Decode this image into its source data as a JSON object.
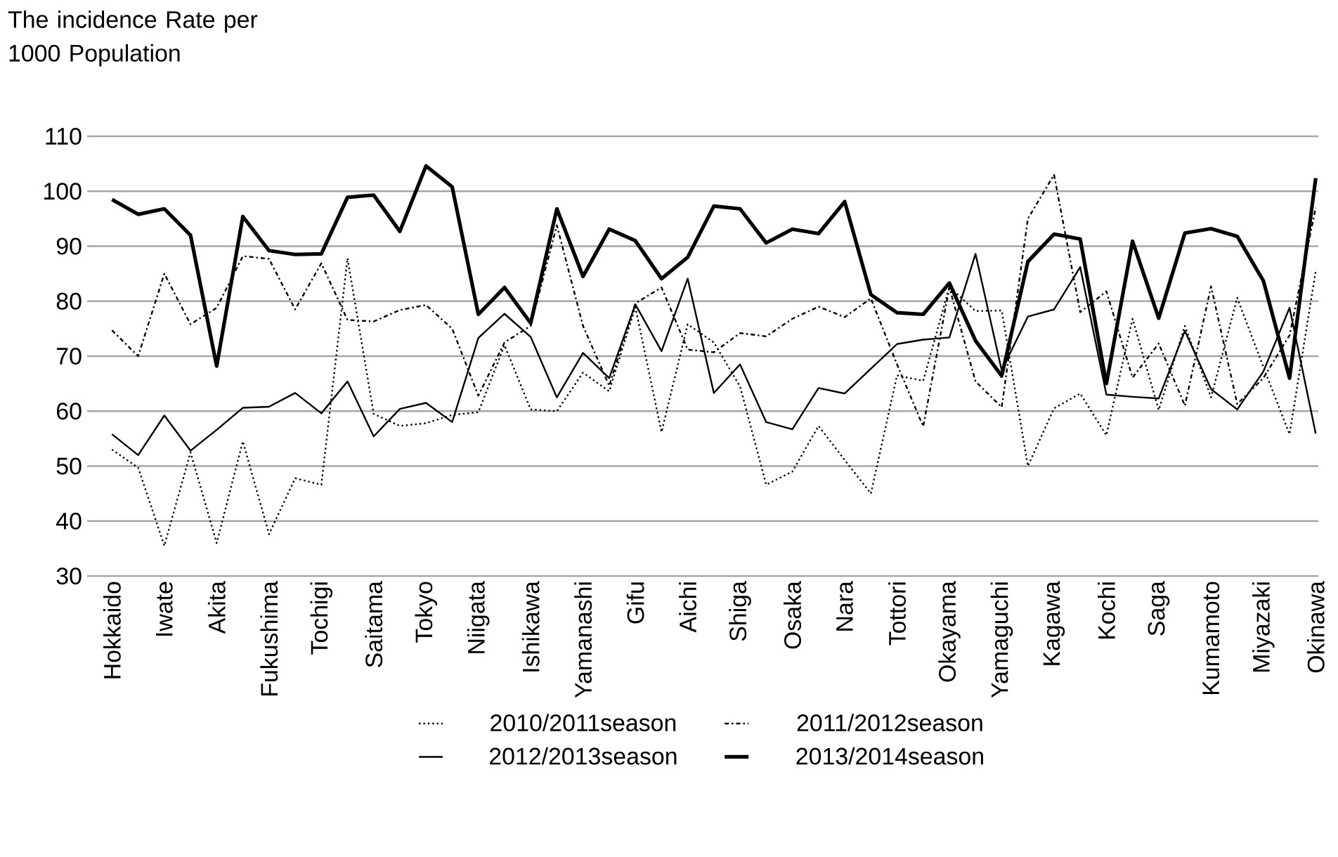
{
  "chart_data": {
    "type": "line",
    "ylabel": "The incidence Rate per 1000 Population",
    "categories": [
      "Hokkaido",
      null,
      "Iwate",
      null,
      "Akita",
      null,
      "Fukushima",
      null,
      "Tochigi",
      null,
      "Saitama",
      null,
      "Tokyo",
      null,
      "Niigata",
      null,
      "Ishikawa",
      null,
      "Yamanashi",
      null,
      "Gifu",
      null,
      "Aichi",
      null,
      "Shiga",
      null,
      "Osaka",
      null,
      "Nara",
      null,
      "Tottori",
      null,
      "Okayama",
      null,
      "Yamaguchi",
      null,
      "Kagawa",
      null,
      "Kochi",
      null,
      "Saga",
      null,
      "Kumamoto",
      null,
      "Miyazaki",
      null,
      "Okinawa"
    ],
    "series": [
      {
        "name": "2010/2011season",
        "color": "#000000",
        "line_style": "dotted",
        "values": [
          53,
          49.7,
          35.5,
          52.5,
          36,
          54.5,
          37.6,
          47.8,
          46.6,
          87.8,
          59.5,
          57.3,
          57.8,
          59.3,
          59.8,
          72,
          60.3,
          60,
          67,
          63.6,
          78.9,
          56.2,
          75.8,
          72.5,
          64.5,
          46.6,
          49,
          57.3,
          51.1,
          45,
          66.5,
          65.5,
          82.6,
          78.2,
          78.3,
          50,
          60.5,
          63.2,
          55.6,
          76.8,
          60.2,
          75.5,
          62.5,
          80.6,
          68,
          55.8,
          85.5
        ]
      },
      {
        "name": "2011/2012season",
        "color": "#000000",
        "line_style": "dashdot",
        "values": [
          74.7,
          70,
          85,
          75.8,
          78.8,
          88.2,
          87.7,
          78.5,
          86.9,
          76.6,
          76.3,
          78.4,
          79.3,
          75,
          62.8,
          72.5,
          75.5,
          93.8,
          75.5,
          64.6,
          79.6,
          82.5,
          71.2,
          70.7,
          74.2,
          73.6,
          76.8,
          79,
          77.1,
          80.5,
          68.5,
          57.2,
          82.5,
          65.4,
          60.7,
          95,
          103,
          78,
          81.8,
          66.1,
          72.3,
          61,
          82.7,
          61.3,
          66,
          73.8,
          97
        ]
      },
      {
        "name": "2012/2013season",
        "color": "#000000",
        "line_style": "solid",
        "values": [
          55.8,
          52,
          59.2,
          52.8,
          56.6,
          60.6,
          60.8,
          63.3,
          59.6,
          65.4,
          55.4,
          60.4,
          61.5,
          58,
          73.3,
          77.7,
          73.5,
          62.5,
          70.6,
          66,
          79.4,
          70.9,
          84.1,
          63.3,
          68.5,
          58,
          56.7,
          64.2,
          63.2,
          67.7,
          72.2,
          73,
          73.4,
          88.6,
          67.4,
          77.2,
          78.5,
          86.2,
          63,
          62.6,
          62.3,
          74.6,
          64,
          60.3,
          67.2,
          78.8,
          55.9
        ]
      },
      {
        "name": "2013/2014season",
        "color": "#000000",
        "line_style": "solid",
        "values": [
          98.5,
          95.8,
          96.8,
          92,
          68.2,
          95.4,
          89.2,
          88.5,
          88.6,
          98.9,
          99.3,
          92.7,
          104.6,
          100.8,
          77.6,
          82.5,
          76,
          96.8,
          84.5,
          93.1,
          91,
          84.1,
          88,
          97.3,
          96.8,
          90.6,
          93.1,
          92.3,
          98.1,
          81.2,
          77.9,
          77.6,
          83.3,
          72.8,
          66.4,
          87.2,
          92.2,
          91.3,
          65,
          90.9,
          76.9,
          92.4,
          93.2,
          91.8,
          83.7,
          66,
          102.4
        ]
      }
    ],
    "ylim": [
      30,
      110
    ],
    "yticks": [
      30,
      40,
      50,
      60,
      70,
      80,
      90,
      100,
      110
    ],
    "grid": "y",
    "legend": "bottom",
    "marker": "none"
  }
}
